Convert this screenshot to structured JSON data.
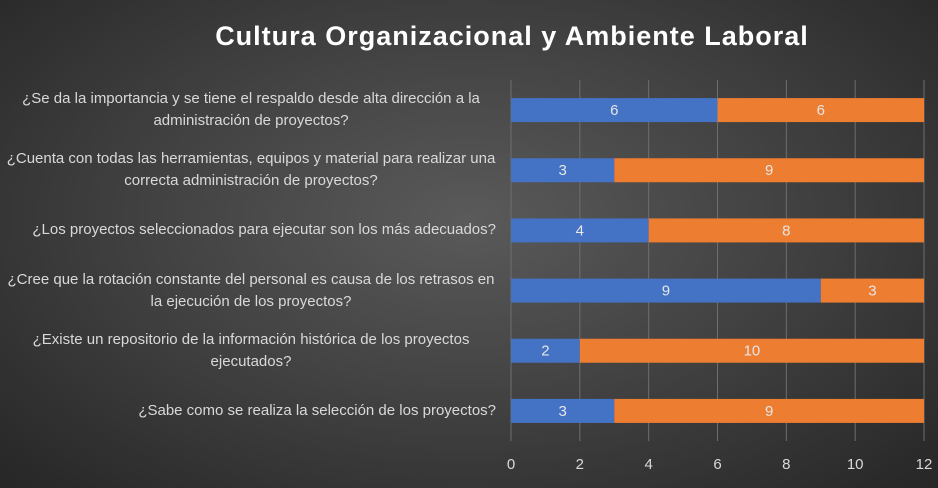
{
  "chart_data": {
    "type": "stacked-bar-horizontal",
    "title": "Cultura Organizacional y Ambiente Laboral",
    "categories": [
      "¿Se da la importancia y se tiene el respaldo desde alta dirección a la administración de proyectos?",
      "¿Cuenta con todas las herramientas, equipos y material para realizar una correcta administración de proyectos?",
      "¿Los proyectos seleccionados para ejecutar son los más adecuados?",
      "¿Cree que la rotación constante del personal es causa de los retrasos en la ejecución de los proyectos?",
      "¿Existe un repositorio de la información histórica de los proyectos ejecutados?",
      "¿Sabe como se realiza la selección de los proyectos?"
    ],
    "series": [
      {
        "color": "#4472c4",
        "values": [
          6,
          3,
          4,
          9,
          2,
          3
        ]
      },
      {
        "color": "#ed7d31",
        "values": [
          6,
          9,
          8,
          3,
          10,
          9
        ]
      }
    ],
    "xlim": [
      0,
      12
    ],
    "xticks": [
      0,
      2,
      4,
      6,
      8,
      10,
      12
    ],
    "grid": true
  }
}
